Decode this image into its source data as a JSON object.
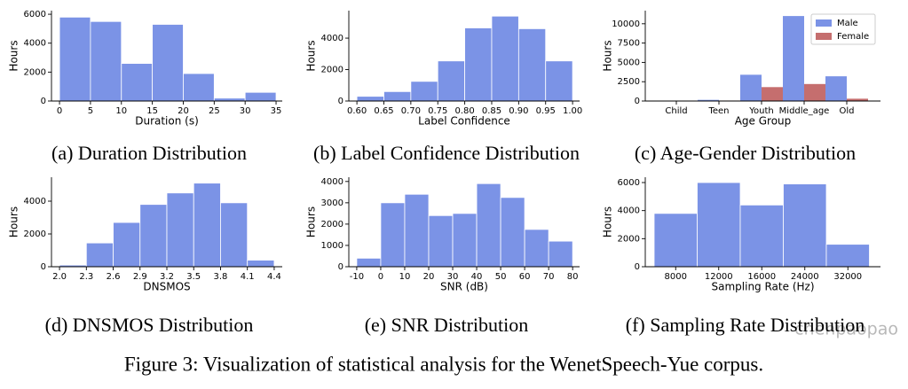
{
  "chart_data": [
    {
      "type": "histogram",
      "caption": "(a) Duration Distribution",
      "xlabel": "Duration (s)",
      "ylabel": "Hours",
      "color": "#7b93e6",
      "bins": [
        0,
        5,
        10,
        15,
        20,
        25,
        30,
        35
      ],
      "values": [
        5800,
        5500,
        2600,
        5300,
        1900,
        200,
        600
      ],
      "xlim": [
        -1.3,
        36
      ],
      "xticks": [
        0,
        5,
        10,
        15,
        20,
        25,
        30,
        35
      ],
      "ylim": [
        0,
        6250
      ],
      "yticks": [
        0,
        2000,
        4000,
        6000
      ]
    },
    {
      "type": "histogram",
      "caption": "(b) Label Confidence Distribution",
      "xlabel": "Label Confidence",
      "ylabel": "Hours",
      "color": "#7b93e6",
      "bins": [
        0.6,
        0.65,
        0.7,
        0.75,
        0.8,
        0.85,
        0.9,
        0.95,
        1.0
      ],
      "values": [
        300,
        600,
        1250,
        2550,
        4650,
        5400,
        4600,
        2550
      ],
      "xlim": [
        0.585,
        1.013
      ],
      "xticks": [
        {
          "value": 0.6,
          "label": "0.60"
        },
        0.65,
        {
          "value": 0.7,
          "label": "0.70"
        },
        0.75,
        {
          "value": 0.8,
          "label": "0.80"
        },
        0.85,
        {
          "value": 0.9,
          "label": "0.90"
        },
        0.95,
        {
          "value": 1.0,
          "label": "1.00"
        }
      ],
      "ylim": [
        0,
        5750
      ],
      "yticks": [
        0,
        2000,
        4000
      ]
    },
    {
      "type": "bar",
      "caption": "(c) Age-Gender Distribution",
      "xlabel": "Age Group",
      "ylabel": "Hours",
      "categories": [
        "Child",
        "Teen",
        "Youth",
        "Middle_age",
        "Old"
      ],
      "series": [
        {
          "name": "Male",
          "color": "#7b93e6",
          "values": [
            50,
            150,
            3400,
            11000,
            3200
          ]
        },
        {
          "name": "Female",
          "color": "#c56e6e",
          "values": [
            30,
            60,
            1800,
            2200,
            300
          ]
        }
      ],
      "legend": "upper right",
      "ylim": [
        0,
        11700
      ],
      "yticks": [
        0,
        2500,
        5000,
        7500,
        10000
      ]
    },
    {
      "type": "histogram",
      "caption": "(d) DNSMOS Distribution",
      "xlabel": "DNSMOS",
      "ylabel": "Hours",
      "color": "#7b93e6",
      "bins": [
        2.0,
        2.3,
        2.6,
        2.9,
        3.2,
        3.5,
        3.8,
        4.1,
        4.4
      ],
      "values": [
        100,
        1450,
        2700,
        3800,
        4500,
        5100,
        3900,
        400
      ],
      "xlim": [
        1.91,
        4.49
      ],
      "xticks": [
        {
          "value": 2.0,
          "label": "2.0"
        },
        2.3,
        2.6,
        2.9,
        3.2,
        3.5,
        3.8,
        4.1,
        4.4
      ],
      "ylim": [
        0,
        5460
      ],
      "yticks": [
        0,
        2000,
        4000
      ]
    },
    {
      "type": "histogram",
      "caption": "(e) SNR Distribution",
      "xlabel": "SNR (dB)",
      "ylabel": "Hours",
      "color": "#7b93e6",
      "bins": [
        -10,
        0,
        10,
        20,
        30,
        40,
        50,
        60,
        70,
        80
      ],
      "values": [
        400,
        3000,
        3400,
        2400,
        2500,
        3900,
        3250,
        1750,
        1200
      ],
      "xlim": [
        -13.3,
        82.9
      ],
      "xticks": [
        -10,
        0,
        10,
        20,
        30,
        40,
        50,
        60,
        70,
        80
      ],
      "ylim": [
        0,
        4200
      ],
      "yticks": [
        0,
        1000,
        2000,
        3000,
        4000
      ]
    },
    {
      "type": "bar",
      "caption": "(f) Sampling Rate Distribution",
      "xlabel": "Sampling Rate (Hz)",
      "ylabel": "Hours",
      "color": "#7b93e6",
      "categories": [
        "8000",
        "12000",
        "16000",
        "24000",
        "32000"
      ],
      "values": [
        3800,
        6000,
        4400,
        5900,
        1600
      ],
      "ylim": [
        0,
        6380
      ],
      "yticks": [
        0,
        2000,
        4000,
        6000
      ]
    }
  ],
  "figure_caption": "Figure 3: Visualization of statistical analysis for the WenetSpeech-Yue corpus.",
  "watermark": "chenpaopao"
}
